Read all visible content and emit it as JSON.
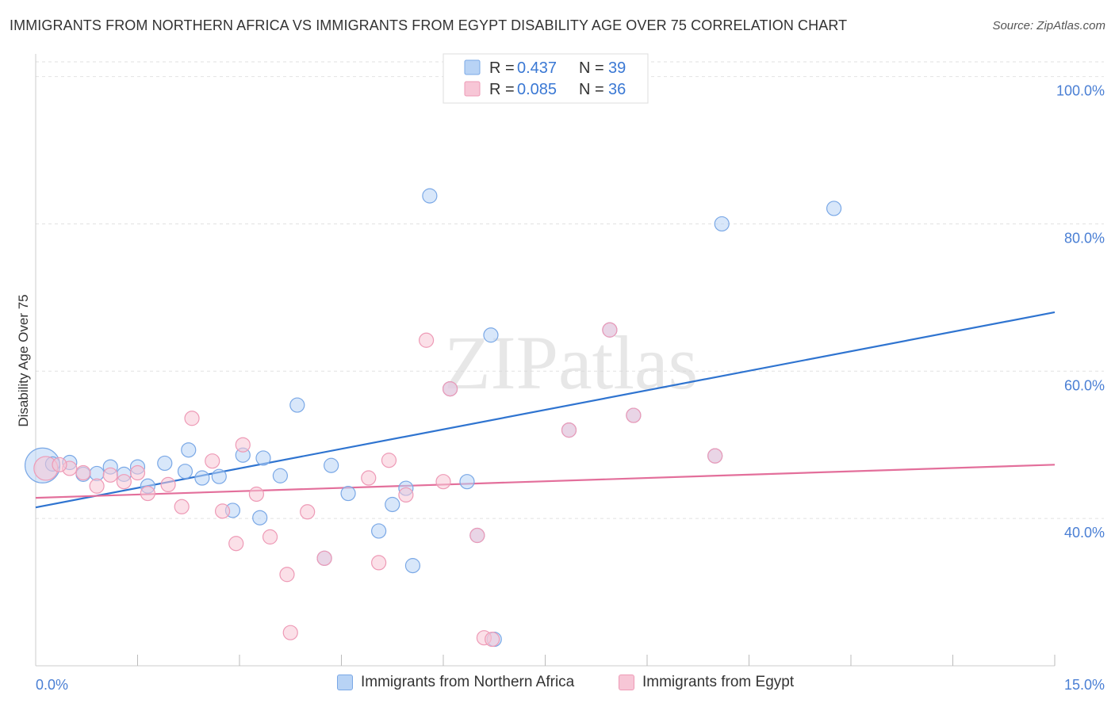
{
  "title": "IMMIGRANTS FROM NORTHERN AFRICA VS IMMIGRANTS FROM EGYPT DISABILITY AGE OVER 75 CORRELATION CHART",
  "source": "Source: ZipAtlas.com",
  "watermark": "ZIPatlas",
  "colors": {
    "blue_fill": "#b8d3f5",
    "blue_stroke": "#7aa8e6",
    "blue_line": "#2f74d0",
    "pink_fill": "#f7c6d6",
    "pink_stroke": "#ee9ab6",
    "pink_line": "#e36f9b",
    "tick_text": "#4a7fd4"
  },
  "legend": {
    "r_label": "R =",
    "n_label": "N =",
    "rows": [
      {
        "series": "blue",
        "r": "0.437",
        "n": "39"
      },
      {
        "series": "pink",
        "r": "0.085",
        "n": "36"
      }
    ]
  },
  "bottom_legend": [
    {
      "series": "blue",
      "label": "Immigrants from Northern Africa"
    },
    {
      "series": "pink",
      "label": "Immigrants from Egypt"
    }
  ],
  "chart_data": {
    "type": "scatter",
    "title": "IMMIGRANTS FROM NORTHERN AFRICA VS IMMIGRANTS FROM EGYPT DISABILITY AGE OVER 75 CORRELATION CHART",
    "xlabel": "",
    "ylabel": "Disability Age Over 75",
    "xlim": [
      0,
      15
    ],
    "ylim": [
      20,
      102
    ],
    "x_tick_labels": [
      "0.0%",
      "15.0%"
    ],
    "y_ticks": [
      40,
      60,
      80,
      100
    ],
    "y_tick_labels": [
      "40.0%",
      "60.0%",
      "80.0%",
      "100.0%"
    ],
    "grid": true,
    "legend_position": "top-center",
    "series": [
      {
        "name": "Immigrants from Northern Africa",
        "color": "blue",
        "trend": {
          "x": [
            0,
            15
          ],
          "y": [
            41.5,
            68.0
          ]
        },
        "points": [
          {
            "x": 0.1,
            "y": 47.2,
            "size": 22
          },
          {
            "x": 0.25,
            "y": 47.4
          },
          {
            "x": 0.5,
            "y": 47.6
          },
          {
            "x": 0.7,
            "y": 46.0
          },
          {
            "x": 0.9,
            "y": 46.1
          },
          {
            "x": 1.1,
            "y": 47.0
          },
          {
            "x": 1.3,
            "y": 46.0
          },
          {
            "x": 1.5,
            "y": 47.0
          },
          {
            "x": 1.65,
            "y": 44.4
          },
          {
            "x": 1.9,
            "y": 47.5
          },
          {
            "x": 2.2,
            "y": 46.4
          },
          {
            "x": 2.25,
            "y": 49.3
          },
          {
            "x": 2.45,
            "y": 45.5
          },
          {
            "x": 2.7,
            "y": 45.7
          },
          {
            "x": 2.9,
            "y": 41.1
          },
          {
            "x": 3.05,
            "y": 48.6
          },
          {
            "x": 3.3,
            "y": 40.1
          },
          {
            "x": 3.35,
            "y": 48.2
          },
          {
            "x": 3.6,
            "y": 45.8
          },
          {
            "x": 3.85,
            "y": 55.4
          },
          {
            "x": 4.25,
            "y": 34.6
          },
          {
            "x": 4.35,
            "y": 47.2
          },
          {
            "x": 4.6,
            "y": 43.4
          },
          {
            "x": 5.05,
            "y": 38.3
          },
          {
            "x": 5.25,
            "y": 41.9
          },
          {
            "x": 5.45,
            "y": 44.1
          },
          {
            "x": 5.55,
            "y": 33.6
          },
          {
            "x": 5.8,
            "y": 83.8
          },
          {
            "x": 6.1,
            "y": 57.6
          },
          {
            "x": 6.35,
            "y": 45.0
          },
          {
            "x": 6.5,
            "y": 37.7
          },
          {
            "x": 6.7,
            "y": 64.9
          },
          {
            "x": 6.75,
            "y": 23.6
          },
          {
            "x": 7.85,
            "y": 52.0
          },
          {
            "x": 8.45,
            "y": 65.6
          },
          {
            "x": 8.8,
            "y": 54.0
          },
          {
            "x": 10.0,
            "y": 48.5
          },
          {
            "x": 10.1,
            "y": 80.0
          },
          {
            "x": 11.75,
            "y": 82.1
          }
        ]
      },
      {
        "name": "Immigrants from Egypt",
        "color": "pink",
        "trend": {
          "x": [
            0,
            15
          ],
          "y": [
            42.8,
            47.3
          ]
        },
        "points": [
          {
            "x": 0.15,
            "y": 46.8,
            "size": 15
          },
          {
            "x": 0.5,
            "y": 46.8
          },
          {
            "x": 0.7,
            "y": 46.2
          },
          {
            "x": 0.9,
            "y": 44.4
          },
          {
            "x": 1.1,
            "y": 45.9
          },
          {
            "x": 1.3,
            "y": 45.0
          },
          {
            "x": 1.5,
            "y": 46.2
          },
          {
            "x": 1.65,
            "y": 43.4
          },
          {
            "x": 1.95,
            "y": 44.6
          },
          {
            "x": 2.15,
            "y": 41.6
          },
          {
            "x": 2.3,
            "y": 53.6
          },
          {
            "x": 2.6,
            "y": 47.8
          },
          {
            "x": 2.75,
            "y": 41.0
          },
          {
            "x": 2.95,
            "y": 36.6
          },
          {
            "x": 3.05,
            "y": 50.0
          },
          {
            "x": 3.25,
            "y": 43.3
          },
          {
            "x": 3.45,
            "y": 37.5
          },
          {
            "x": 3.7,
            "y": 32.4
          },
          {
            "x": 3.75,
            "y": 24.5
          },
          {
            "x": 4.0,
            "y": 40.9
          },
          {
            "x": 4.25,
            "y": 34.6
          },
          {
            "x": 4.9,
            "y": 45.5
          },
          {
            "x": 5.05,
            "y": 34.0
          },
          {
            "x": 5.2,
            "y": 47.9
          },
          {
            "x": 5.45,
            "y": 43.2
          },
          {
            "x": 5.75,
            "y": 64.2
          },
          {
            "x": 6.0,
            "y": 45.0
          },
          {
            "x": 6.1,
            "y": 57.6
          },
          {
            "x": 6.5,
            "y": 37.7
          },
          {
            "x": 6.6,
            "y": 23.8
          },
          {
            "x": 7.85,
            "y": 52.0
          },
          {
            "x": 8.45,
            "y": 65.6
          },
          {
            "x": 8.8,
            "y": 54.0
          },
          {
            "x": 10.0,
            "y": 48.5
          },
          {
            "x": 6.72,
            "y": 23.6
          },
          {
            "x": 0.35,
            "y": 47.3
          }
        ]
      }
    ]
  }
}
